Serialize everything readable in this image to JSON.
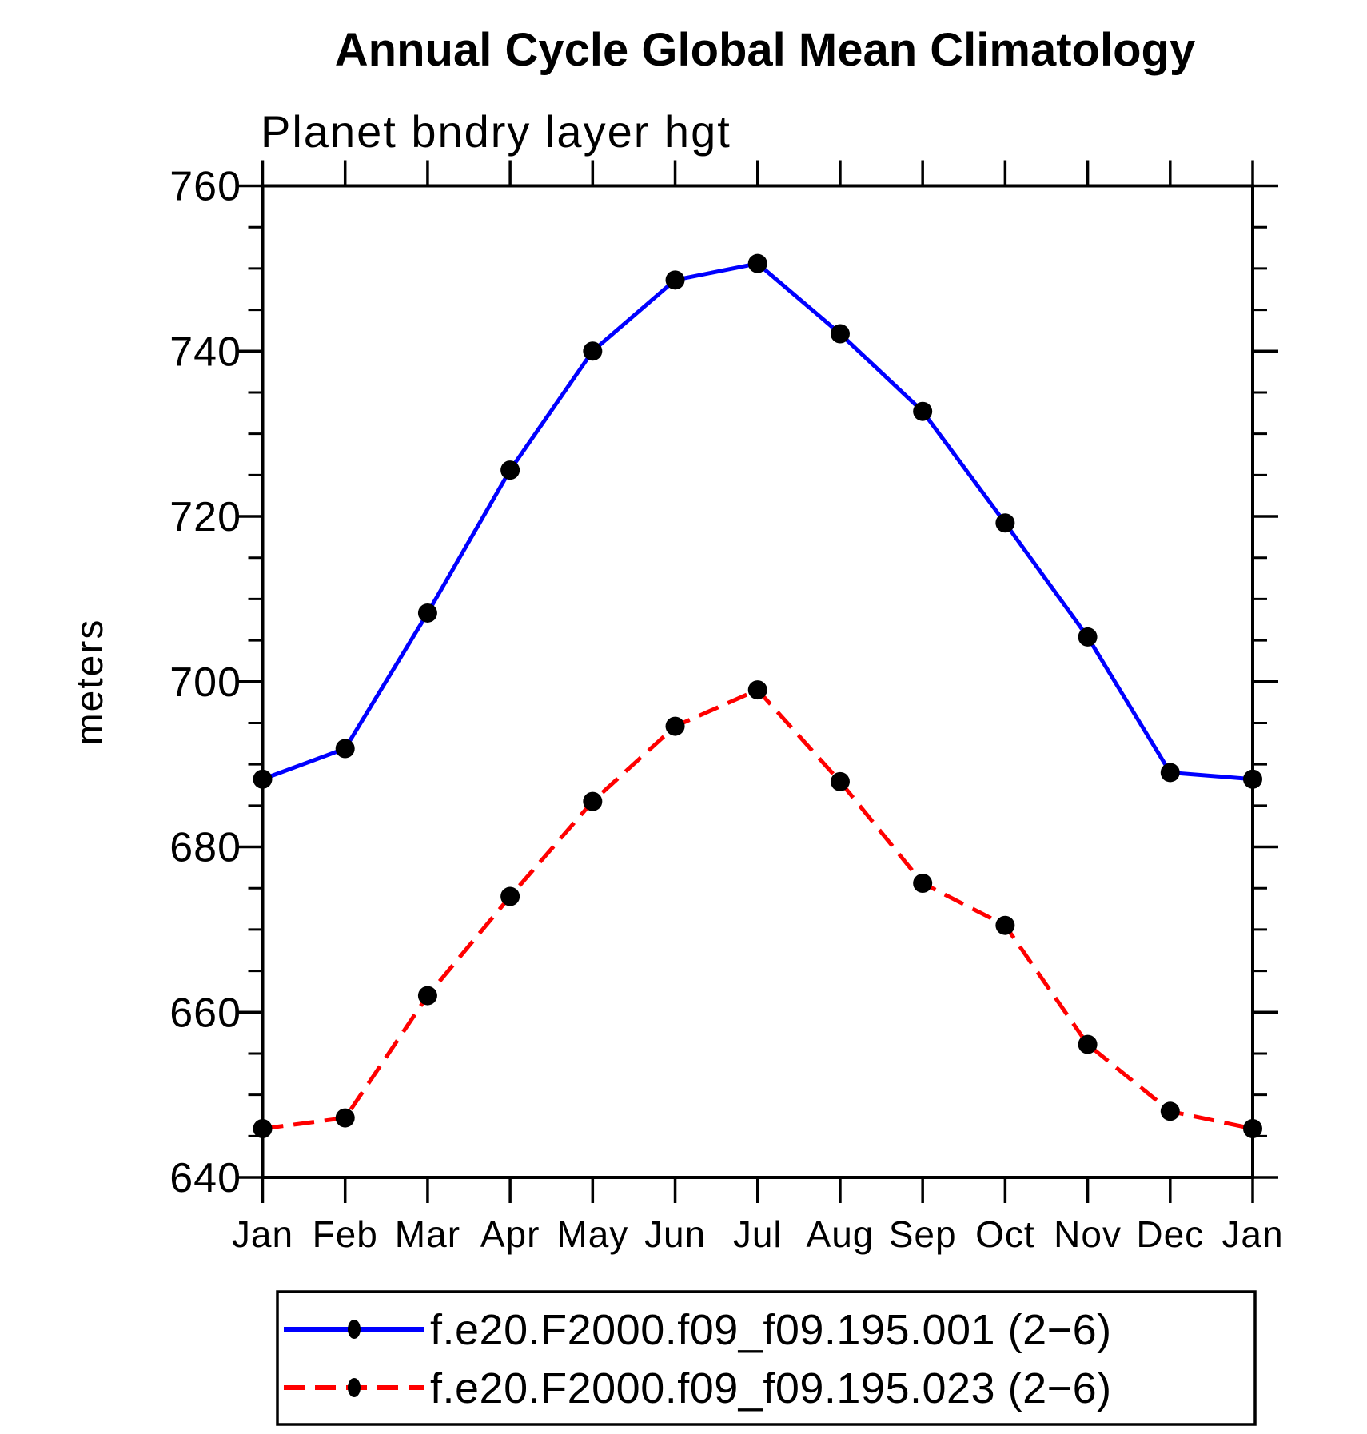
{
  "window": {
    "background": "#ffffff"
  },
  "chart_data": {
    "type": "line",
    "title": "Annual Cycle Global Mean Climatology",
    "subtitle": "Planet bndry layer hgt",
    "ylabel": "meters",
    "xlabel": "",
    "categories": [
      "Jan",
      "Feb",
      "Mar",
      "Apr",
      "May",
      "Jun",
      "Jul",
      "Aug",
      "Sep",
      "Oct",
      "Nov",
      "Dec",
      "Jan"
    ],
    "ylim": [
      640,
      760
    ],
    "y_major_step": 20,
    "y_minor_step": 5,
    "y_tick_labels": [
      "640",
      "660",
      "680",
      "700",
      "720",
      "740",
      "760"
    ],
    "grid": false,
    "frame": "box-with-outward-ticks",
    "legend_position": "bottom-left-box",
    "axis_color": "#000000",
    "marker_color": "#000000",
    "series": [
      {
        "name": "f.e20.F2000.f09_f09.195.001 (2−6)",
        "color": "#0000ff",
        "line_style": "solid",
        "marker": "filled-circle",
        "values": [
          688.2,
          691.9,
          708.3,
          725.6,
          740.0,
          748.6,
          750.6,
          742.1,
          732.7,
          719.2,
          705.4,
          689.0,
          688.2
        ]
      },
      {
        "name": "f.e20.F2000.f09_f09.195.023 (2−6)",
        "color": "#ff0000",
        "line_style": "dashed",
        "marker": "filled-circle",
        "values": [
          645.9,
          647.2,
          662.0,
          674.0,
          685.5,
          694.6,
          699.0,
          687.9,
          675.6,
          670.5,
          656.1,
          648.0,
          645.9
        ]
      }
    ]
  }
}
